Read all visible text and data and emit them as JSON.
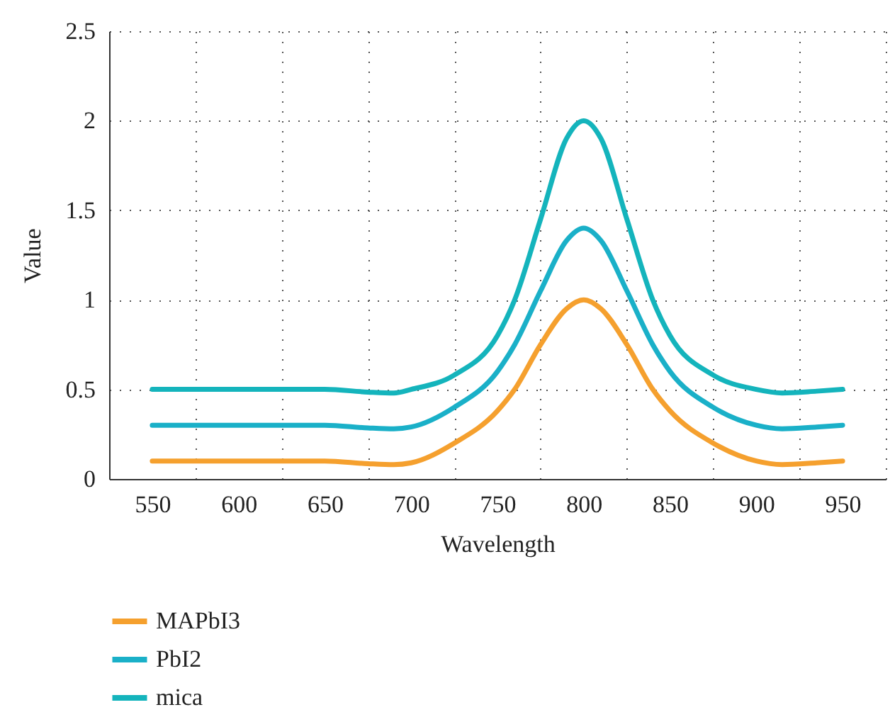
{
  "chart_data": {
    "type": "line",
    "xlabel": "Wavelength",
    "ylabel": "Value",
    "x": [
      550,
      600,
      650,
      675,
      690,
      700,
      725,
      750,
      760,
      775,
      790,
      800,
      810,
      825,
      840,
      850,
      875,
      900,
      915,
      935,
      950
    ],
    "series": [
      {
        "name": "MAPbI3",
        "color": "#f5a02e",
        "values": [
          0.1,
          0.1,
          0.1,
          0.085,
          0.08,
          0.09,
          0.2,
          0.38,
          0.5,
          0.75,
          0.95,
          1.0,
          0.95,
          0.75,
          0.5,
          0.38,
          0.2,
          0.1,
          0.08,
          0.09,
          0.1
        ]
      },
      {
        "name": "PbI2",
        "color": "#1ab0c8",
        "values": [
          0.3,
          0.3,
          0.3,
          0.285,
          0.28,
          0.29,
          0.4,
          0.6,
          0.75,
          1.05,
          1.33,
          1.4,
          1.33,
          1.05,
          0.75,
          0.6,
          0.4,
          0.3,
          0.28,
          0.29,
          0.3
        ]
      },
      {
        "name": "mica",
        "color": "#14b4bc",
        "values": [
          0.5,
          0.5,
          0.5,
          0.485,
          0.48,
          0.5,
          0.58,
          0.8,
          1.0,
          1.45,
          1.9,
          2.0,
          1.9,
          1.45,
          1.0,
          0.8,
          0.58,
          0.5,
          0.48,
          0.49,
          0.5
        ]
      }
    ],
    "xlim": [
      525,
      975
    ],
    "xticks": [
      550,
      {
        "value": 575,
        "label": null
      },
      600,
      {
        "value": 625,
        "label": null
      },
      650,
      {
        "value": 675,
        "label": null
      },
      700,
      {
        "value": 725,
        "label": null
      },
      750,
      {
        "value": 775,
        "label": null
      },
      800,
      {
        "value": 825,
        "label": null
      },
      850,
      {
        "value": 875,
        "label": null
      },
      900,
      {
        "value": 925,
        "label": null
      },
      950,
      {
        "value": 975,
        "label": null
      }
    ],
    "ylim": [
      0,
      2.5
    ],
    "yticks": [
      0,
      0.5,
      1,
      1.5,
      2,
      2.5
    ],
    "grid": true,
    "legend": "bottom left",
    "line_style": "solid",
    "marker": "none"
  }
}
